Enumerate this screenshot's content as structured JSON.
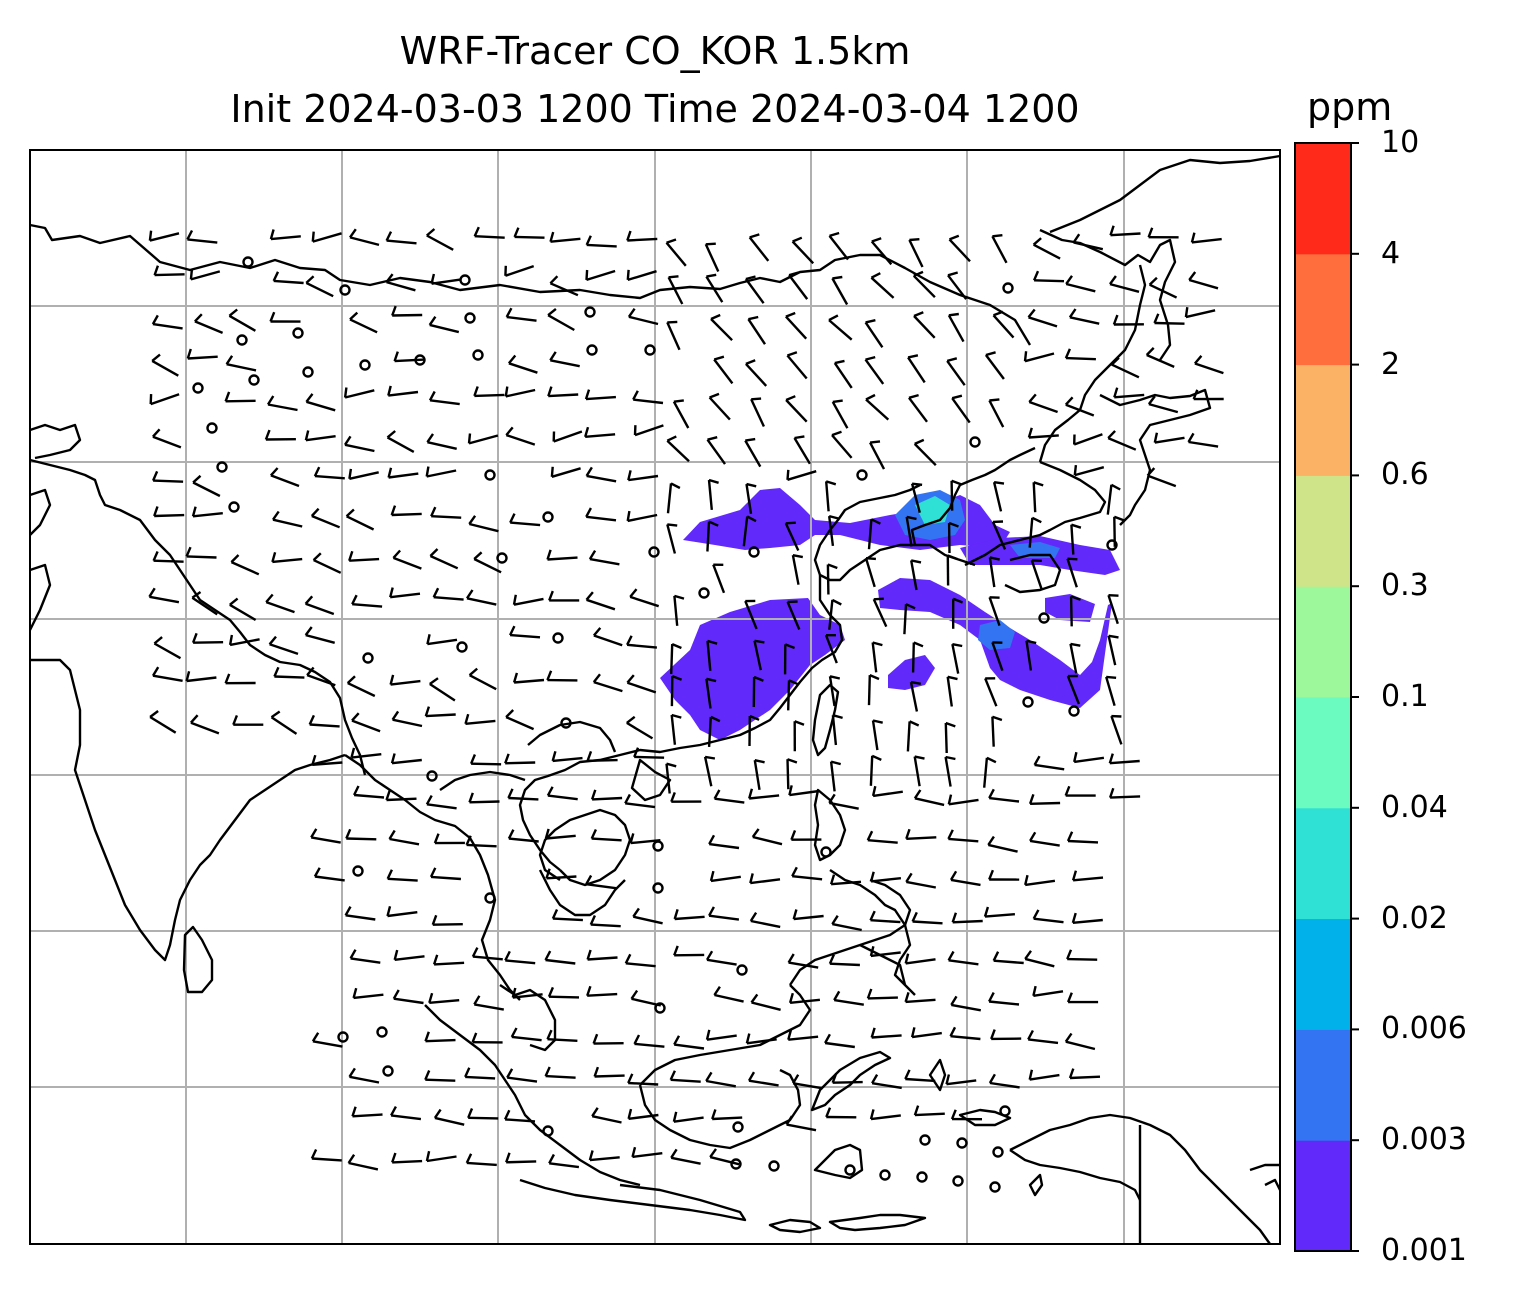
{
  "title": {
    "line1": "WRF-Tracer CO_KOR 1.5km",
    "line2": "Init 2024-03-03 1200 Time 2024-03-04 1200"
  },
  "colorbar": {
    "unit": "ppm",
    "ticks": [
      "0.001",
      "0.003",
      "0.006",
      "0.02",
      "0.04",
      "0.1",
      "0.3",
      "0.6",
      "2",
      "4",
      "10"
    ],
    "colors": [
      "#6229fb",
      "#3374f2",
      "#00b1ea",
      "#2fe0d5",
      "#6bfac0",
      "#9cf89a",
      "#cfe388",
      "#fbb265",
      "#ff6e3c",
      "#ff2a1a"
    ]
  },
  "map": {
    "grid_color": "#b0b0b0",
    "coast_color": "#000000",
    "barb_color": "#000000",
    "plume_colors": {
      "low": "#6229fb",
      "mid": "#3374f2",
      "high": "#2fe0d5"
    }
  }
}
